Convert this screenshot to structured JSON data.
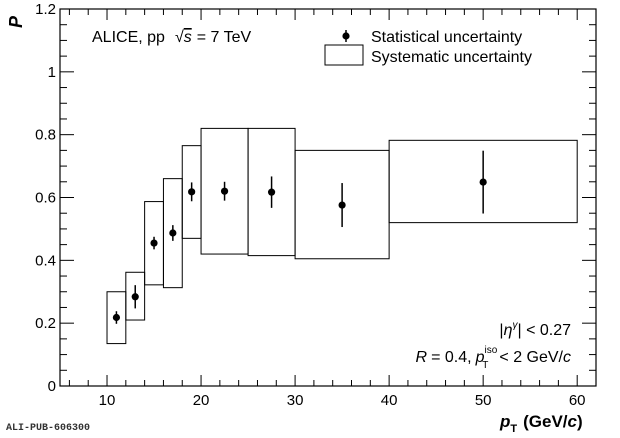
{
  "chart_data": {
    "type": "scatter",
    "experiment_label": "ALICE, pp",
    "energy_label": "= 7 TeV",
    "sqrt_symbol": "√",
    "energy_var": "s",
    "ylabel": "P",
    "xlabel_main": "p",
    "xlabel_sub": "T",
    "xlabel_unit": "(GeV/",
    "xlabel_unit_var": "c",
    "xlabel_unit_close": ")",
    "xlim": [
      5,
      62
    ],
    "ylim": [
      0,
      1.2
    ],
    "x_ticks": [
      10,
      20,
      30,
      40,
      50,
      60
    ],
    "x_tick_labels": [
      "10",
      "20",
      "30",
      "40",
      "50",
      "60"
    ],
    "y_ticks": [
      0,
      0.2,
      0.4,
      0.6,
      0.8,
      1,
      1.2
    ],
    "y_tick_labels": [
      "0",
      "0.2",
      "0.4",
      "0.6",
      "0.8",
      "1",
      "1.2"
    ],
    "legend": {
      "position": "top-right",
      "entries": [
        "Statistical uncertainty",
        "Systematic uncertainty"
      ]
    },
    "annotation_eta": "| < 0.27",
    "annotation_eta_sym": "η",
    "annotation_eta_sup": "γ",
    "annotation_cone_r": "R",
    "annotation_cone": "= 0.4,",
    "annotation_piso_p": "p",
    "annotation_piso_sup": "iso",
    "annotation_piso_sub": "T",
    "annotation_piso_rest": "< 2 GeV/",
    "annotation_piso_c": "c",
    "points": [
      {
        "x": 11,
        "y": 0.218,
        "stat": 0.02,
        "xlow": 10,
        "xhigh": 12,
        "syslow": 0.135,
        "syshigh": 0.3
      },
      {
        "x": 13,
        "y": 0.284,
        "stat": 0.037,
        "xlow": 12,
        "xhigh": 14,
        "syslow": 0.21,
        "syshigh": 0.362
      },
      {
        "x": 15,
        "y": 0.455,
        "stat": 0.02,
        "xlow": 14,
        "xhigh": 16,
        "syslow": 0.322,
        "syshigh": 0.587
      },
      {
        "x": 17,
        "y": 0.487,
        "stat": 0.025,
        "xlow": 16,
        "xhigh": 18,
        "syslow": 0.313,
        "syshigh": 0.66
      },
      {
        "x": 19,
        "y": 0.618,
        "stat": 0.03,
        "xlow": 18,
        "xhigh": 20,
        "syslow": 0.47,
        "syshigh": 0.765
      },
      {
        "x": 22.5,
        "y": 0.62,
        "stat": 0.03,
        "xlow": 20,
        "xhigh": 25,
        "syslow": 0.42,
        "syshigh": 0.82
      },
      {
        "x": 27.5,
        "y": 0.617,
        "stat": 0.05,
        "xlow": 25,
        "xhigh": 30,
        "syslow": 0.415,
        "syshigh": 0.82
      },
      {
        "x": 35,
        "y": 0.576,
        "stat": 0.07,
        "xlow": 30,
        "xhigh": 40,
        "syslow": 0.405,
        "syshigh": 0.75
      },
      {
        "x": 50,
        "y": 0.649,
        "stat": 0.1,
        "xlow": 40,
        "xhigh": 60,
        "syslow": 0.52,
        "syshigh": 0.782
      }
    ]
  },
  "footer": {
    "publication_id": "ALI-PUB-606300"
  }
}
